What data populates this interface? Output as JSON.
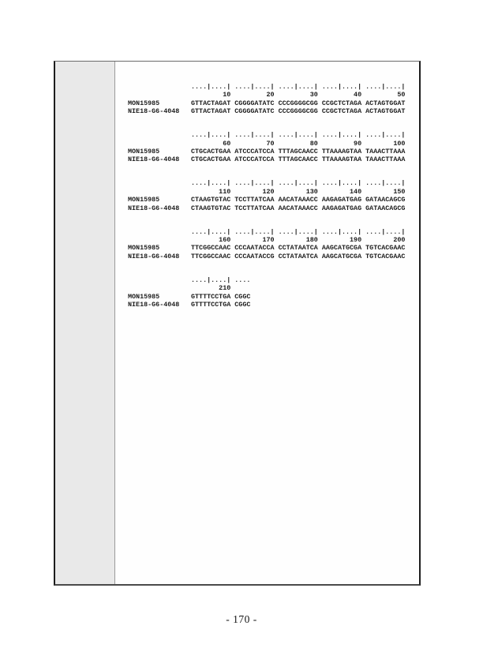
{
  "page": {
    "footer": "- 170 -"
  },
  "colors": {
    "page_background": "#ffffff",
    "margin_shade": "#e9e9e9",
    "frame_border": "#1d1d1d",
    "text": "#1c1c1c"
  },
  "alignment": {
    "row_labels": [
      "MON15985",
      "NIE18-G6-4048"
    ],
    "blocks": [
      {
        "ruler": "....|....| ....|....| ....|....| ....|....| ....|....|",
        "numbers": "        10         20         30         40         50",
        "rows": [
          "GTTACTAGAT CGGGGATATC CCCGGGGCGG CCGCTCTAGA ACTAGTGGAT",
          "GTTACTAGAT CGGGGATATC CCCGGGGCGG CCGCTCTAGA ACTAGTGGAT"
        ]
      },
      {
        "ruler": "....|....| ....|....| ....|....| ....|....| ....|....|",
        "numbers": "        60         70         80         90        100",
        "rows": [
          "CTGCACTGAA ATCCCATCCA TTTAGCAACC TTAAAAGTAA TAAACTTAAA",
          "CTGCACTGAA ATCCCATCCA TTTAGCAACC TTAAAAGTAA TAAACTTAAA"
        ]
      },
      {
        "ruler": "....|....| ....|....| ....|....| ....|....| ....|....|",
        "numbers": "       110        120        130        140        150",
        "rows": [
          "CTAAGTGTAC TCCTTATCAA AACATAAACC AAGAGATGAG GATAACAGCG",
          "CTAAGTGTAC TCCTTATCAA AACATAAACC AAGAGATGAG GATAACAGCG"
        ]
      },
      {
        "ruler": "....|....| ....|....| ....|....| ....|....| ....|....|",
        "numbers": "       160        170        180        190        200",
        "rows": [
          "TTCGGCCAAC CCCAATACCA CCTATAATCA AAGCATGCGA TGTCACGAAC",
          "TTCGGCCAAC CCCAATACCG CCTATAATCA AAGCATGCGA TGTCACGAAC"
        ]
      },
      {
        "ruler": "....|....| ....",
        "numbers": "       210",
        "rows": [
          "GTTTTCCTGA CGGC",
          "GTTTTCCTGA CGGC"
        ]
      }
    ]
  }
}
